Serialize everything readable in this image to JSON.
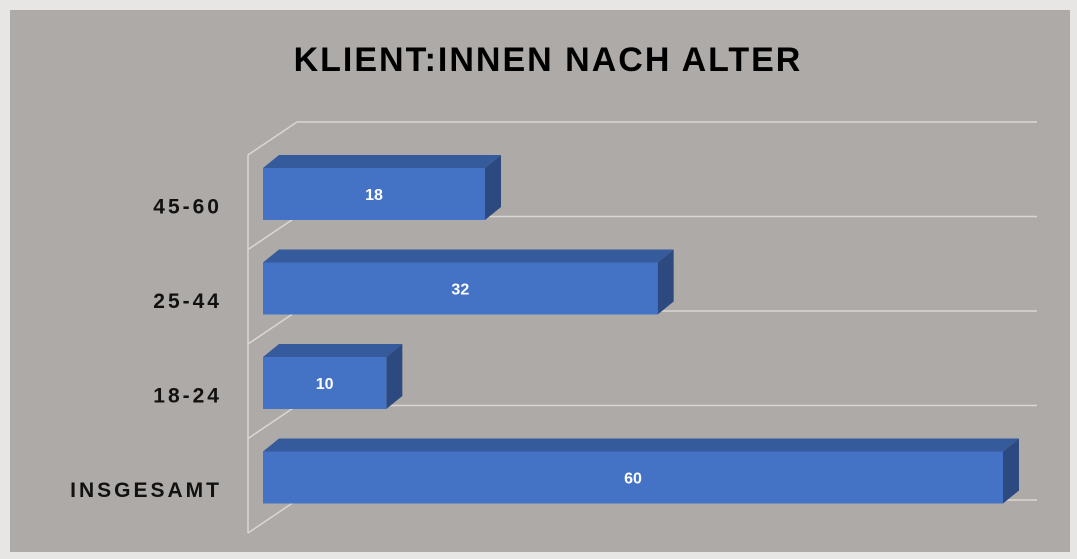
{
  "chart_data": {
    "type": "bar",
    "title": "KLIENT:INNEN NACH ALTER",
    "categories": [
      "45-60",
      "25-44",
      "18-24",
      "INSGESAMT"
    ],
    "values": [
      18,
      32,
      10,
      60
    ],
    "color": "#4472c4"
  }
}
